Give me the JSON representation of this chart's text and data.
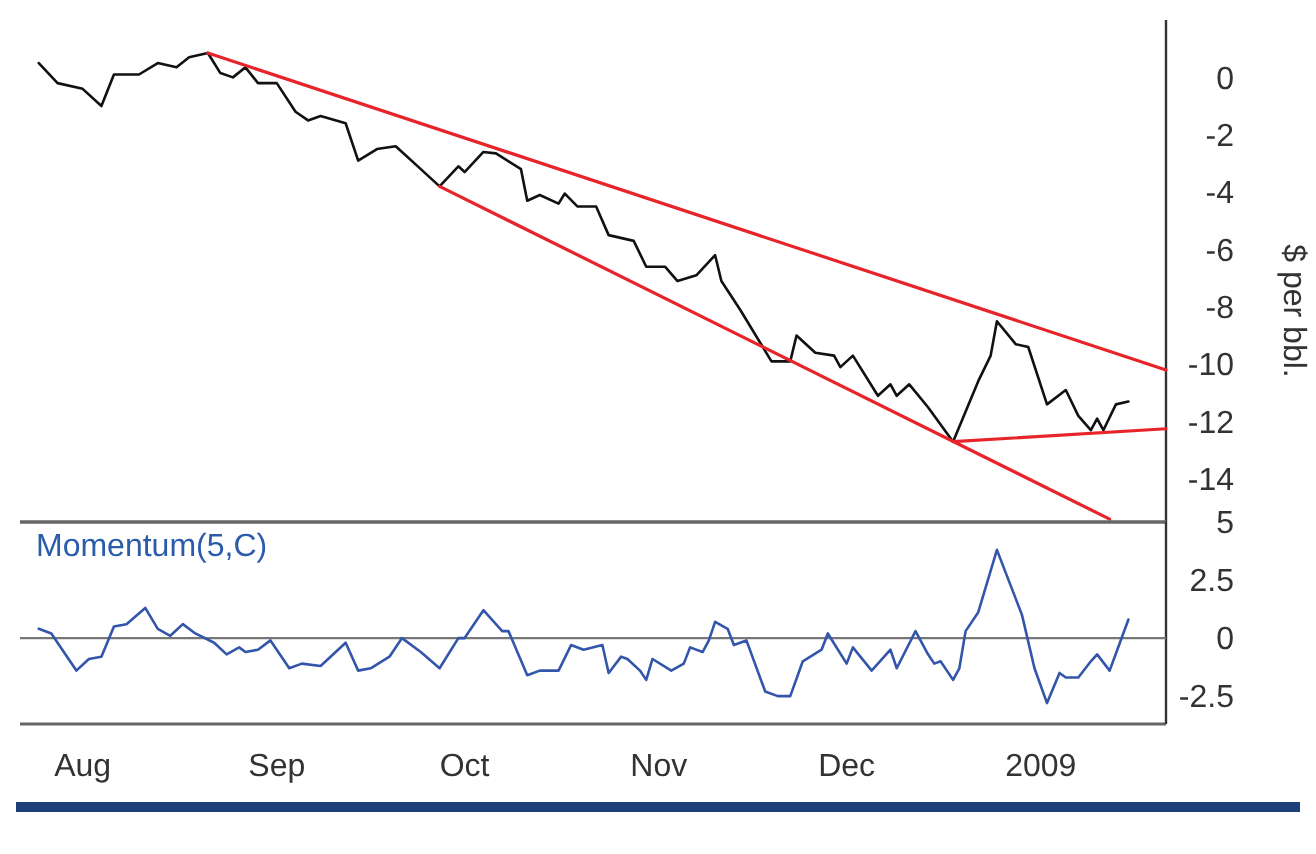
{
  "chart_data": [
    {
      "type": "line",
      "ylabel": "$ per bbl.",
      "xlim": [
        "2008-07-22",
        "2009-01-21"
      ],
      "ylim": [
        -15.5,
        2
      ],
      "yticks": [
        0,
        -2,
        -4,
        -6,
        -8,
        -10,
        -12,
        -14
      ],
      "tick_labels": "y",
      "grid": false,
      "marker": "none",
      "line_style": "solid",
      "series": [
        {
          "color": "#111111",
          "x": [
            "2008-07-25",
            "2008-07-28",
            "2008-08-01",
            "2008-08-04",
            "2008-08-06",
            "2008-08-10",
            "2008-08-13",
            "2008-08-16",
            "2008-08-18",
            "2008-08-21",
            "2008-08-23",
            "2008-08-25",
            "2008-08-27",
            "2008-08-29",
            "2008-09-01",
            "2008-09-04",
            "2008-09-06",
            "2008-09-08",
            "2008-09-12",
            "2008-09-14",
            "2008-09-17",
            "2008-09-20",
            "2008-09-24",
            "2008-09-27",
            "2008-09-30",
            "2008-10-01",
            "2008-10-04",
            "2008-10-06",
            "2008-10-10",
            "2008-10-11",
            "2008-10-13",
            "2008-10-16",
            "2008-10-17",
            "2008-10-19",
            "2008-10-22",
            "2008-10-24",
            "2008-10-28",
            "2008-10-30",
            "2008-11-02",
            "2008-11-04",
            "2008-11-07",
            "2008-11-10",
            "2008-11-11",
            "2008-11-14",
            "2008-11-19",
            "2008-11-22",
            "2008-11-23",
            "2008-11-26",
            "2008-11-29",
            "2008-11-30",
            "2008-12-02",
            "2008-12-06",
            "2008-12-08",
            "2008-12-09",
            "2008-12-11",
            "2008-12-14",
            "2008-12-18",
            "2008-12-22",
            "2008-12-24",
            "2008-12-25",
            "2008-12-28",
            "2008-12-30",
            "2009-01-02",
            "2009-01-05",
            "2009-01-07",
            "2009-01-09",
            "2009-01-10",
            "2009-01-11",
            "2009-01-13",
            "2009-01-15"
          ],
          "values": [
            0.5,
            -0.2,
            -0.4,
            -1.0,
            0.1,
            0.1,
            0.5,
            0.35,
            0.7,
            0.85,
            0.15,
            0,
            0.35,
            -0.2,
            -0.2,
            -1.2,
            -1.5,
            -1.35,
            -1.6,
            -2.9,
            -2.5,
            -2.4,
            -3.2,
            -3.8,
            -3.1,
            -3.3,
            -2.6,
            -2.65,
            -3.2,
            -4.3,
            -4.1,
            -4.4,
            -4.05,
            -4.5,
            -4.5,
            -5.5,
            -5.7,
            -6.6,
            -6.6,
            -7.1,
            -6.9,
            -6.2,
            -7.1,
            -8.1,
            -9.9,
            -9.9,
            -9.0,
            -9.6,
            -9.7,
            -10.1,
            -9.7,
            -11.1,
            -10.7,
            -11.1,
            -10.7,
            -11.5,
            -12.7,
            -10.6,
            -9.7,
            -8.5,
            -9.3,
            -9.4,
            -11.4,
            -10.9,
            -11.8,
            -12.3,
            -11.9,
            -12.3,
            -11.4,
            -11.3
          ]
        },
        {
          "type": "line",
          "color": "#e8242b",
          "x": [
            "2008-08-21",
            "2009-01-21"
          ],
          "values": [
            0.85,
            -10.2
          ]
        },
        {
          "type": "line",
          "color": "#e8242b",
          "x": [
            "2008-09-27",
            "2009-01-12"
          ],
          "values": [
            -3.8,
            -15.4
          ]
        },
        {
          "type": "line",
          "color": "#e8242b",
          "x": [
            "2008-12-18",
            "2009-01-21"
          ],
          "values": [
            -12.7,
            -12.25
          ]
        }
      ]
    },
    {
      "type": "line",
      "title": "Momentum(5,C)",
      "xlim": [
        "2008-07-22",
        "2009-01-21"
      ],
      "ylim": [
        -3.7,
        5
      ],
      "yticks": [
        5,
        2.5,
        0,
        -2.5
      ],
      "xticks": [
        {
          "value": "2008-08-01",
          "label": "Aug"
        },
        {
          "value": "2008-09-01",
          "label": "Sep"
        },
        {
          "value": "2008-10-01",
          "label": "Oct"
        },
        {
          "value": "2008-11-01",
          "label": "Nov"
        },
        {
          "value": "2008-12-01",
          "label": "Dec"
        },
        {
          "value": "2009-01-01",
          "label": "2009"
        }
      ],
      "grid": false,
      "marker": "none",
      "line_style": "solid",
      "ref_lines": [
        {
          "axis": "y",
          "value": 0,
          "color": "#777777"
        }
      ],
      "series": [
        {
          "color": "#3355aa",
          "x": [
            "2008-07-25",
            "2008-07-27",
            "2008-07-31",
            "2008-08-02",
            "2008-08-04",
            "2008-08-06",
            "2008-08-08",
            "2008-08-11",
            "2008-08-13",
            "2008-08-15",
            "2008-08-17",
            "2008-08-19",
            "2008-08-22",
            "2008-08-24",
            "2008-08-26",
            "2008-08-27",
            "2008-08-29",
            "2008-08-31",
            "2008-09-03",
            "2008-09-05",
            "2008-09-08",
            "2008-09-12",
            "2008-09-14",
            "2008-09-16",
            "2008-09-19",
            "2008-09-21",
            "2008-09-24",
            "2008-09-27",
            "2008-09-30",
            "2008-10-01",
            "2008-10-04",
            "2008-10-07",
            "2008-10-08",
            "2008-10-11",
            "2008-10-13",
            "2008-10-16",
            "2008-10-18",
            "2008-10-20",
            "2008-10-23",
            "2008-10-24",
            "2008-10-26",
            "2008-10-27",
            "2008-10-29",
            "2008-10-30",
            "2008-10-31",
            "2008-11-03",
            "2008-11-05",
            "2008-11-06",
            "2008-11-08",
            "2008-11-09",
            "2008-11-10",
            "2008-11-12",
            "2008-11-13",
            "2008-11-15",
            "2008-11-18",
            "2008-11-20",
            "2008-11-22",
            "2008-11-24",
            "2008-11-27",
            "2008-11-28",
            "2008-12-01",
            "2008-12-02",
            "2008-12-05",
            "2008-12-08",
            "2008-12-09",
            "2008-12-12",
            "2008-12-14",
            "2008-12-15",
            "2008-12-16",
            "2008-12-18",
            "2008-12-19",
            "2008-12-20",
            "2008-12-22",
            "2008-12-25",
            "2008-12-28",
            "2008-12-29",
            "2008-12-31",
            "2009-01-02",
            "2009-01-04",
            "2009-01-05",
            "2009-01-07",
            "2009-01-09",
            "2009-01-10",
            "2009-01-12",
            "2009-01-15"
          ],
          "values": [
            0.4,
            0.2,
            -1.4,
            -0.9,
            -0.8,
            0.5,
            0.6,
            1.3,
            0.4,
            0.1,
            0.6,
            0.2,
            -0.2,
            -0.7,
            -0.4,
            -0.6,
            -0.5,
            -0.1,
            -1.3,
            -1.1,
            -1.2,
            -0.2,
            -1.4,
            -1.3,
            -0.8,
            0,
            -0.6,
            -1.3,
            0,
            0,
            1.2,
            0.3,
            0.3,
            -1.6,
            -1.4,
            -1.4,
            -0.3,
            -0.5,
            -0.3,
            -1.5,
            -0.8,
            -0.9,
            -1.4,
            -1.8,
            -0.9,
            -1.4,
            -1.1,
            -0.4,
            -0.6,
            -0.1,
            0.7,
            0.4,
            -0.3,
            -0.1,
            -2.3,
            -2.5,
            -2.5,
            -1.0,
            -0.5,
            0.2,
            -1.1,
            -0.4,
            -1.4,
            -0.5,
            -1.3,
            0.3,
            -0.7,
            -1.1,
            -1.0,
            -1.8,
            -1.3,
            0.3,
            1.1,
            3.8,
            1.7,
            1.0,
            -1.3,
            -2.8,
            -1.5,
            -1.7,
            -1.7,
            -1.0,
            -0.7,
            -1.4,
            0.8
          ]
        }
      ]
    }
  ]
}
